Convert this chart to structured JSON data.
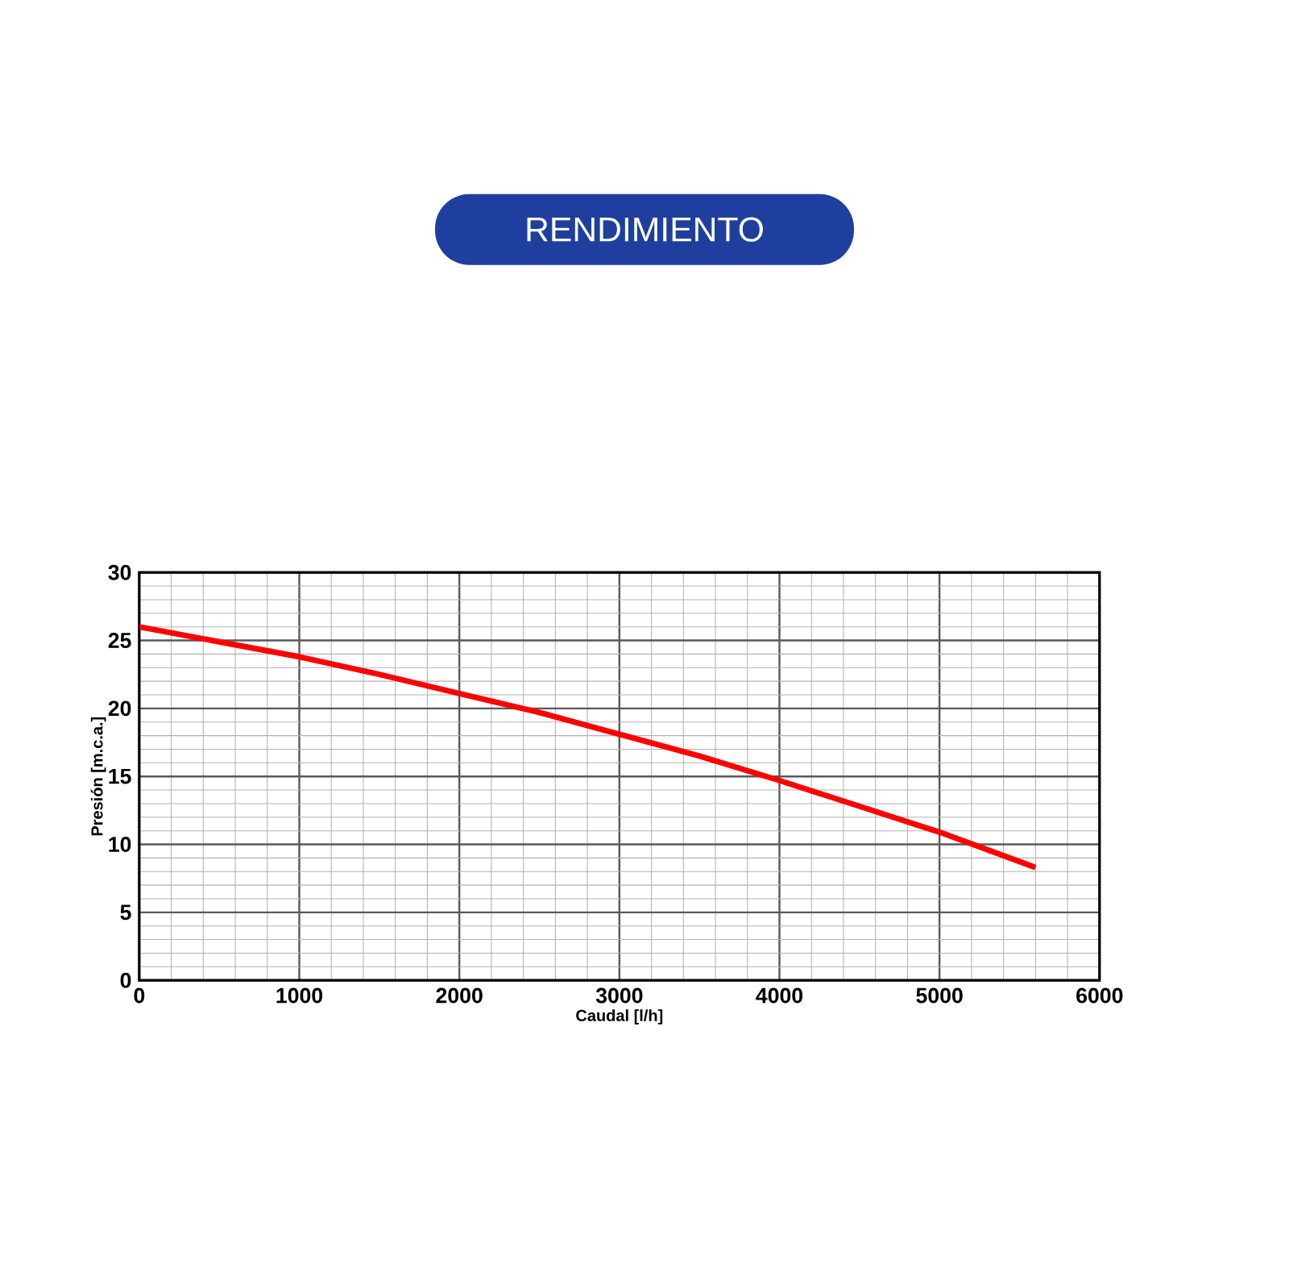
{
  "chart_data": {
    "type": "line",
    "title": "RENDIMIENTO",
    "xlabel": "Caudal [l/h]",
    "ylabel": "Presión [m.c.a.]",
    "x": [
      0,
      500,
      1000,
      1500,
      2000,
      2500,
      3000,
      3500,
      4000,
      4500,
      5000,
      5600
    ],
    "series": [
      {
        "color": "#ff0000",
        "values": [
          26,
          24.9,
          23.8,
          22.5,
          21.1,
          19.7,
          18.1,
          16.5,
          14.7,
          12.8,
          10.9,
          8.3
        ]
      }
    ],
    "xlim": [
      0,
      6000
    ],
    "ylim": [
      0,
      30
    ],
    "xticks": [
      0,
      1000,
      2000,
      3000,
      4000,
      5000,
      6000
    ],
    "yticks": [
      0,
      5,
      10,
      15,
      20,
      25,
      30
    ],
    "grid": true,
    "marker": "none",
    "line_style": "solid"
  }
}
